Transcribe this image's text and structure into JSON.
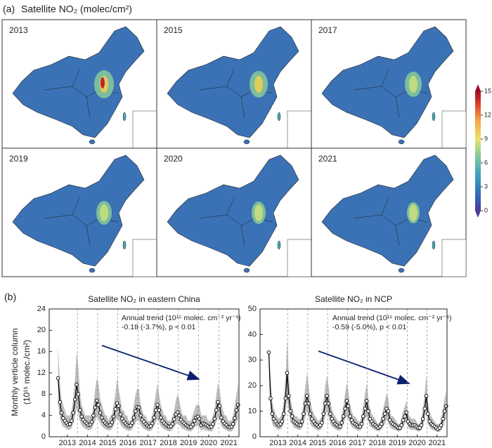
{
  "panel_a": {
    "label": "(a)",
    "title": "Satellite NO₂ (molec/cm²)",
    "years": [
      "2013",
      "2015",
      "2017",
      "2019",
      "2020",
      "2021"
    ],
    "colorbar": {
      "lim": [
        0,
        15
      ],
      "ticks": [
        0,
        3,
        6,
        9,
        12,
        15
      ]
    }
  },
  "panel_b": {
    "label": "(b)",
    "ylabel": [
      "Monthly verticle column",
      "(10¹⁵ molec./cm²)"
    ]
  },
  "chart_data": [
    {
      "type": "line",
      "title": "Satellite NO₂ in eastern China",
      "annotation": [
        "Annual trend (10¹⁵ molec. cm⁻² yr⁻¹)",
        "-0.18 (-3.7%), p < 0.01"
      ],
      "x": [
        2013.04,
        2013.13,
        2013.21,
        2013.29,
        2013.38,
        2013.46,
        2013.54,
        2013.63,
        2013.71,
        2013.79,
        2013.88,
        2013.96,
        2014.04,
        2014.13,
        2014.21,
        2014.29,
        2014.38,
        2014.46,
        2014.54,
        2014.63,
        2014.71,
        2014.79,
        2014.88,
        2014.96,
        2015.04,
        2015.13,
        2015.21,
        2015.29,
        2015.38,
        2015.46,
        2015.54,
        2015.63,
        2015.71,
        2015.79,
        2015.88,
        2015.96,
        2016.04,
        2016.13,
        2016.21,
        2016.29,
        2016.38,
        2016.46,
        2016.54,
        2016.63,
        2016.71,
        2016.79,
        2016.88,
        2016.96,
        2017.04,
        2017.13,
        2017.21,
        2017.29,
        2017.38,
        2017.46,
        2017.54,
        2017.63,
        2017.71,
        2017.79,
        2017.88,
        2017.96,
        2018.04,
        2018.13,
        2018.21,
        2018.29,
        2018.38,
        2018.46,
        2018.54,
        2018.63,
        2018.71,
        2018.79,
        2018.88,
        2018.96,
        2019.04,
        2019.13,
        2019.21,
        2019.29,
        2019.38,
        2019.46,
        2019.54,
        2019.63,
        2019.71,
        2019.79,
        2019.88,
        2019.96,
        2020.04,
        2020.13,
        2020.21,
        2020.29,
        2020.38,
        2020.46,
        2020.54,
        2020.63,
        2020.71,
        2020.79,
        2020.88,
        2020.96,
        2021.04,
        2021.13,
        2021.21,
        2021.29,
        2021.38,
        2021.46,
        2021.54,
        2021.63,
        2021.71,
        2021.79,
        2021.88,
        2021.96
      ],
      "xlim": [
        2012.6,
        2022.0
      ],
      "xticks": [
        {
          "value": 2013.5,
          "label": "2013"
        },
        {
          "value": 2014.5,
          "label": "2014"
        },
        {
          "value": 2015.5,
          "label": "2015"
        },
        {
          "value": 2016.5,
          "label": "2016"
        },
        {
          "value": 2017.5,
          "label": "2017"
        },
        {
          "value": 2018.5,
          "label": "2018"
        },
        {
          "value": 2019.5,
          "label": "2019"
        },
        {
          "value": 2020.5,
          "label": "2020"
        },
        {
          "value": 2021.5,
          "label": "2021"
        }
      ],
      "vlines": [
        2014,
        2015,
        2016,
        2017,
        2018,
        2019,
        2020,
        2021
      ],
      "ylim": [
        0,
        24
      ],
      "yticks": [
        0,
        4,
        8,
        12,
        16,
        20,
        24
      ],
      "color": "#000000",
      "band_color": "#bdbdbd",
      "values": [
        11,
        6.5,
        4.5,
        3.5,
        3.0,
        2.6,
        2.3,
        2.4,
        3.0,
        4.5,
        7.0,
        9.8,
        8.0,
        5.0,
        3.8,
        3.2,
        2.8,
        2.5,
        2.2,
        2.3,
        2.8,
        4.0,
        5.5,
        6.8,
        6.0,
        4.5,
        3.6,
        3.0,
        2.6,
        2.3,
        2.1,
        2.2,
        2.7,
        3.8,
        5.2,
        6.3,
        5.8,
        4.2,
        3.4,
        2.9,
        2.5,
        2.2,
        2.0,
        2.1,
        2.6,
        3.6,
        4.8,
        5.6,
        5.5,
        4.0,
        3.2,
        2.8,
        2.4,
        2.1,
        1.9,
        2.0,
        2.5,
        3.6,
        5.0,
        6.0,
        5.0,
        3.6,
        3.0,
        2.6,
        2.3,
        2.0,
        1.9,
        2.0,
        2.4,
        3.3,
        4.2,
        4.6,
        4.0,
        3.2,
        2.8,
        2.5,
        2.2,
        2.0,
        1.8,
        1.9,
        2.3,
        3.0,
        3.6,
        3.8,
        3.4,
        2.2,
        2.5,
        2.4,
        2.2,
        2.0,
        1.8,
        1.9,
        2.4,
        3.4,
        5.0,
        6.5,
        5.8,
        3.6,
        2.9,
        2.5,
        2.2,
        1.9,
        1.8,
        1.9,
        2.4,
        3.5,
        5.0,
        6.0
      ],
      "band_high": [
        17,
        10,
        7,
        6,
        5,
        4,
        4,
        4,
        5,
        7,
        11,
        16,
        13,
        8,
        6,
        5,
        4,
        4,
        4,
        4,
        4,
        6,
        9,
        11,
        10,
        7,
        6,
        5,
        4,
        4,
        3,
        4,
        4,
        6,
        8,
        11,
        9,
        7,
        5,
        5,
        4,
        4,
        3,
        3,
        4,
        6,
        8,
        9,
        9,
        6,
        5,
        4,
        4,
        3,
        3,
        3,
        4,
        6,
        8,
        10,
        8,
        6,
        5,
        4,
        4,
        3,
        3,
        3,
        4,
        5,
        7,
        8,
        7,
        5,
        4,
        4,
        4,
        3,
        3,
        3,
        4,
        5,
        6,
        6,
        6,
        4,
        4,
        4,
        4,
        3,
        3,
        3,
        4,
        5,
        8,
        10,
        9,
        6,
        5,
        4,
        4,
        3,
        3,
        3,
        4,
        6,
        8,
        10
      ],
      "band_low": [
        6.0,
        3.6,
        2.5,
        1.9,
        1.7,
        1.4,
        1.3,
        1.3,
        1.7,
        2.5,
        3.9,
        5.4,
        4.4,
        2.8,
        2.1,
        1.8,
        1.5,
        1.4,
        1.2,
        1.3,
        1.5,
        2.2,
        3.0,
        3.7,
        3.3,
        2.5,
        2.0,
        1.7,
        1.4,
        1.3,
        1.2,
        1.2,
        1.5,
        2.1,
        2.9,
        3.5,
        3.2,
        2.3,
        1.9,
        1.6,
        1.4,
        1.2,
        1.1,
        1.2,
        1.4,
        2.0,
        2.6,
        3.1,
        3.0,
        2.2,
        1.8,
        1.5,
        1.3,
        1.2,
        1.0,
        1.1,
        1.4,
        2.0,
        2.8,
        3.3,
        2.8,
        2.0,
        1.7,
        1.4,
        1.3,
        1.1,
        1.0,
        1.1,
        1.3,
        1.8,
        2.3,
        2.5,
        2.2,
        1.8,
        1.5,
        1.4,
        1.2,
        1.1,
        1.0,
        1.0,
        1.3,
        1.7,
        2.0,
        2.1,
        1.9,
        1.2,
        1.4,
        1.3,
        1.2,
        1.1,
        1.0,
        1.0,
        1.3,
        1.9,
        2.8,
        3.6,
        3.2,
        2.0,
        1.6,
        1.4,
        1.2,
        1.0,
        1.0,
        1.0,
        1.3,
        1.9,
        2.8,
        3.3
      ]
    },
    {
      "type": "line",
      "title": "Satellite NO₂ in NCP",
      "annotation": [
        "Annual trend (10¹⁵ molec. cm⁻² yr⁻¹)",
        "-0.59 (-5.0%), p < 0.01"
      ],
      "x": [
        2013.04,
        2013.13,
        2013.21,
        2013.29,
        2013.38,
        2013.46,
        2013.54,
        2013.63,
        2013.71,
        2013.79,
        2013.88,
        2013.96,
        2014.04,
        2014.13,
        2014.21,
        2014.29,
        2014.38,
        2014.46,
        2014.54,
        2014.63,
        2014.71,
        2014.79,
        2014.88,
        2014.96,
        2015.04,
        2015.13,
        2015.21,
        2015.29,
        2015.38,
        2015.46,
        2015.54,
        2015.63,
        2015.71,
        2015.79,
        2015.88,
        2015.96,
        2016.04,
        2016.13,
        2016.21,
        2016.29,
        2016.38,
        2016.46,
        2016.54,
        2016.63,
        2016.71,
        2016.79,
        2016.88,
        2016.96,
        2017.04,
        2017.13,
        2017.21,
        2017.29,
        2017.38,
        2017.46,
        2017.54,
        2017.63,
        2017.71,
        2017.79,
        2017.88,
        2017.96,
        2018.04,
        2018.13,
        2018.21,
        2018.29,
        2018.38,
        2018.46,
        2018.54,
        2018.63,
        2018.71,
        2018.79,
        2018.88,
        2018.96,
        2019.04,
        2019.13,
        2019.21,
        2019.29,
        2019.38,
        2019.46,
        2019.54,
        2019.63,
        2019.71,
        2019.79,
        2019.88,
        2019.96,
        2020.04,
        2020.13,
        2020.21,
        2020.29,
        2020.38,
        2020.46,
        2020.54,
        2020.63,
        2020.71,
        2020.79,
        2020.88,
        2020.96,
        2021.04,
        2021.13,
        2021.21,
        2021.29,
        2021.38,
        2021.46,
        2021.54,
        2021.63,
        2021.71,
        2021.79,
        2021.88,
        2021.96
      ],
      "xlim": [
        2012.6,
        2022.0
      ],
      "xticks": [
        {
          "value": 2013.5,
          "label": "2013"
        },
        {
          "value": 2014.5,
          "label": "2014"
        },
        {
          "value": 2015.5,
          "label": "2015"
        },
        {
          "value": 2016.5,
          "label": "2016"
        },
        {
          "value": 2017.5,
          "label": "2017"
        },
        {
          "value": 2018.5,
          "label": "2018"
        },
        {
          "value": 2019.5,
          "label": "2019"
        },
        {
          "value": 2020.5,
          "label": "2020"
        },
        {
          "value": 2021.5,
          "label": "2021"
        }
      ],
      "vlines": [
        2014,
        2015,
        2016,
        2017,
        2018,
        2019,
        2020,
        2021
      ],
      "ylim": [
        0,
        50
      ],
      "yticks": [
        0,
        10,
        20,
        30,
        40,
        50
      ],
      "color": "#000000",
      "band_color": "#bdbdbd",
      "values": [
        33,
        15,
        9,
        7,
        6,
        5,
        4.5,
        5,
        6,
        9,
        15,
        25,
        16,
        10,
        8,
        6,
        5.5,
        5,
        4.5,
        4.5,
        6,
        9,
        13,
        16,
        13,
        9,
        7,
        6,
        5,
        4.5,
        4,
        4.5,
        5.5,
        9,
        13,
        16,
        13,
        9,
        7,
        6,
        5,
        4.5,
        4,
        4,
        5.5,
        8,
        11,
        14,
        12,
        8,
        6.5,
        5.5,
        5,
        4.5,
        4,
        4,
        5,
        8,
        11,
        14,
        10,
        7,
        6,
        5,
        4.5,
        4,
        3.5,
        4,
        5,
        7,
        9,
        11,
        10,
        6.5,
        5.5,
        5,
        4.5,
        4,
        3.5,
        3.5,
        4.5,
        6.5,
        8,
        9.5,
        6,
        5,
        4.5,
        4.5,
        4.5,
        4,
        3.5,
        3.5,
        4.5,
        7,
        11,
        16,
        9,
        6,
        5,
        4.5,
        4,
        3.5,
        3,
        3.5,
        4.5,
        7,
        10,
        12
      ],
      "band_high": [
        34,
        23,
        14,
        11,
        9,
        8,
        7,
        8,
        9,
        14,
        23,
        38,
        25,
        15,
        12,
        9,
        8,
        8,
        7,
        7,
        9,
        14,
        20,
        25,
        20,
        14,
        11,
        9,
        8,
        7,
        6,
        7,
        8,
        14,
        20,
        24,
        20,
        14,
        11,
        9,
        8,
        7,
        6,
        6,
        8,
        12,
        17,
        21,
        18,
        12,
        10,
        8,
        8,
        7,
        6,
        6,
        8,
        12,
        17,
        21,
        15,
        11,
        9,
        8,
        7,
        6,
        5,
        6,
        8,
        11,
        14,
        17,
        15,
        10,
        8,
        8,
        7,
        6,
        5,
        5,
        7,
        10,
        12,
        14,
        9,
        8,
        7,
        7,
        7,
        6,
        5,
        5,
        7,
        11,
        17,
        24,
        14,
        9,
        8,
        7,
        6,
        5,
        5,
        5,
        7,
        11,
        15,
        18
      ],
      "band_low": [
        30,
        9,
        5,
        4,
        3.6,
        3,
        2.7,
        3,
        3.6,
        5,
        9,
        15,
        10,
        6,
        5,
        3.6,
        3.3,
        3,
        2.7,
        2.7,
        3.6,
        5,
        8,
        10,
        8,
        5,
        4,
        3.6,
        3,
        2.7,
        2.4,
        2.7,
        3.3,
        5,
        8,
        10,
        8,
        5,
        4,
        3.6,
        3,
        2.7,
        2.4,
        2.4,
        3.3,
        5,
        7,
        8,
        7,
        5,
        3.9,
        3.3,
        3,
        2.7,
        2.4,
        2.4,
        3,
        5,
        7,
        8,
        6,
        4,
        3.6,
        3,
        2.7,
        2.4,
        2.1,
        2.4,
        3,
        4,
        5,
        7,
        6,
        3.9,
        3.3,
        3,
        2.7,
        2.4,
        2.1,
        2.1,
        2.7,
        3.9,
        5,
        6,
        3.6,
        3,
        2.7,
        2.7,
        2.7,
        2.4,
        2.1,
        2.1,
        2.7,
        4,
        7,
        10,
        5,
        3.6,
        3,
        2.7,
        2.4,
        2.1,
        1.8,
        2.1,
        2.7,
        4,
        6,
        7
      ]
    }
  ]
}
